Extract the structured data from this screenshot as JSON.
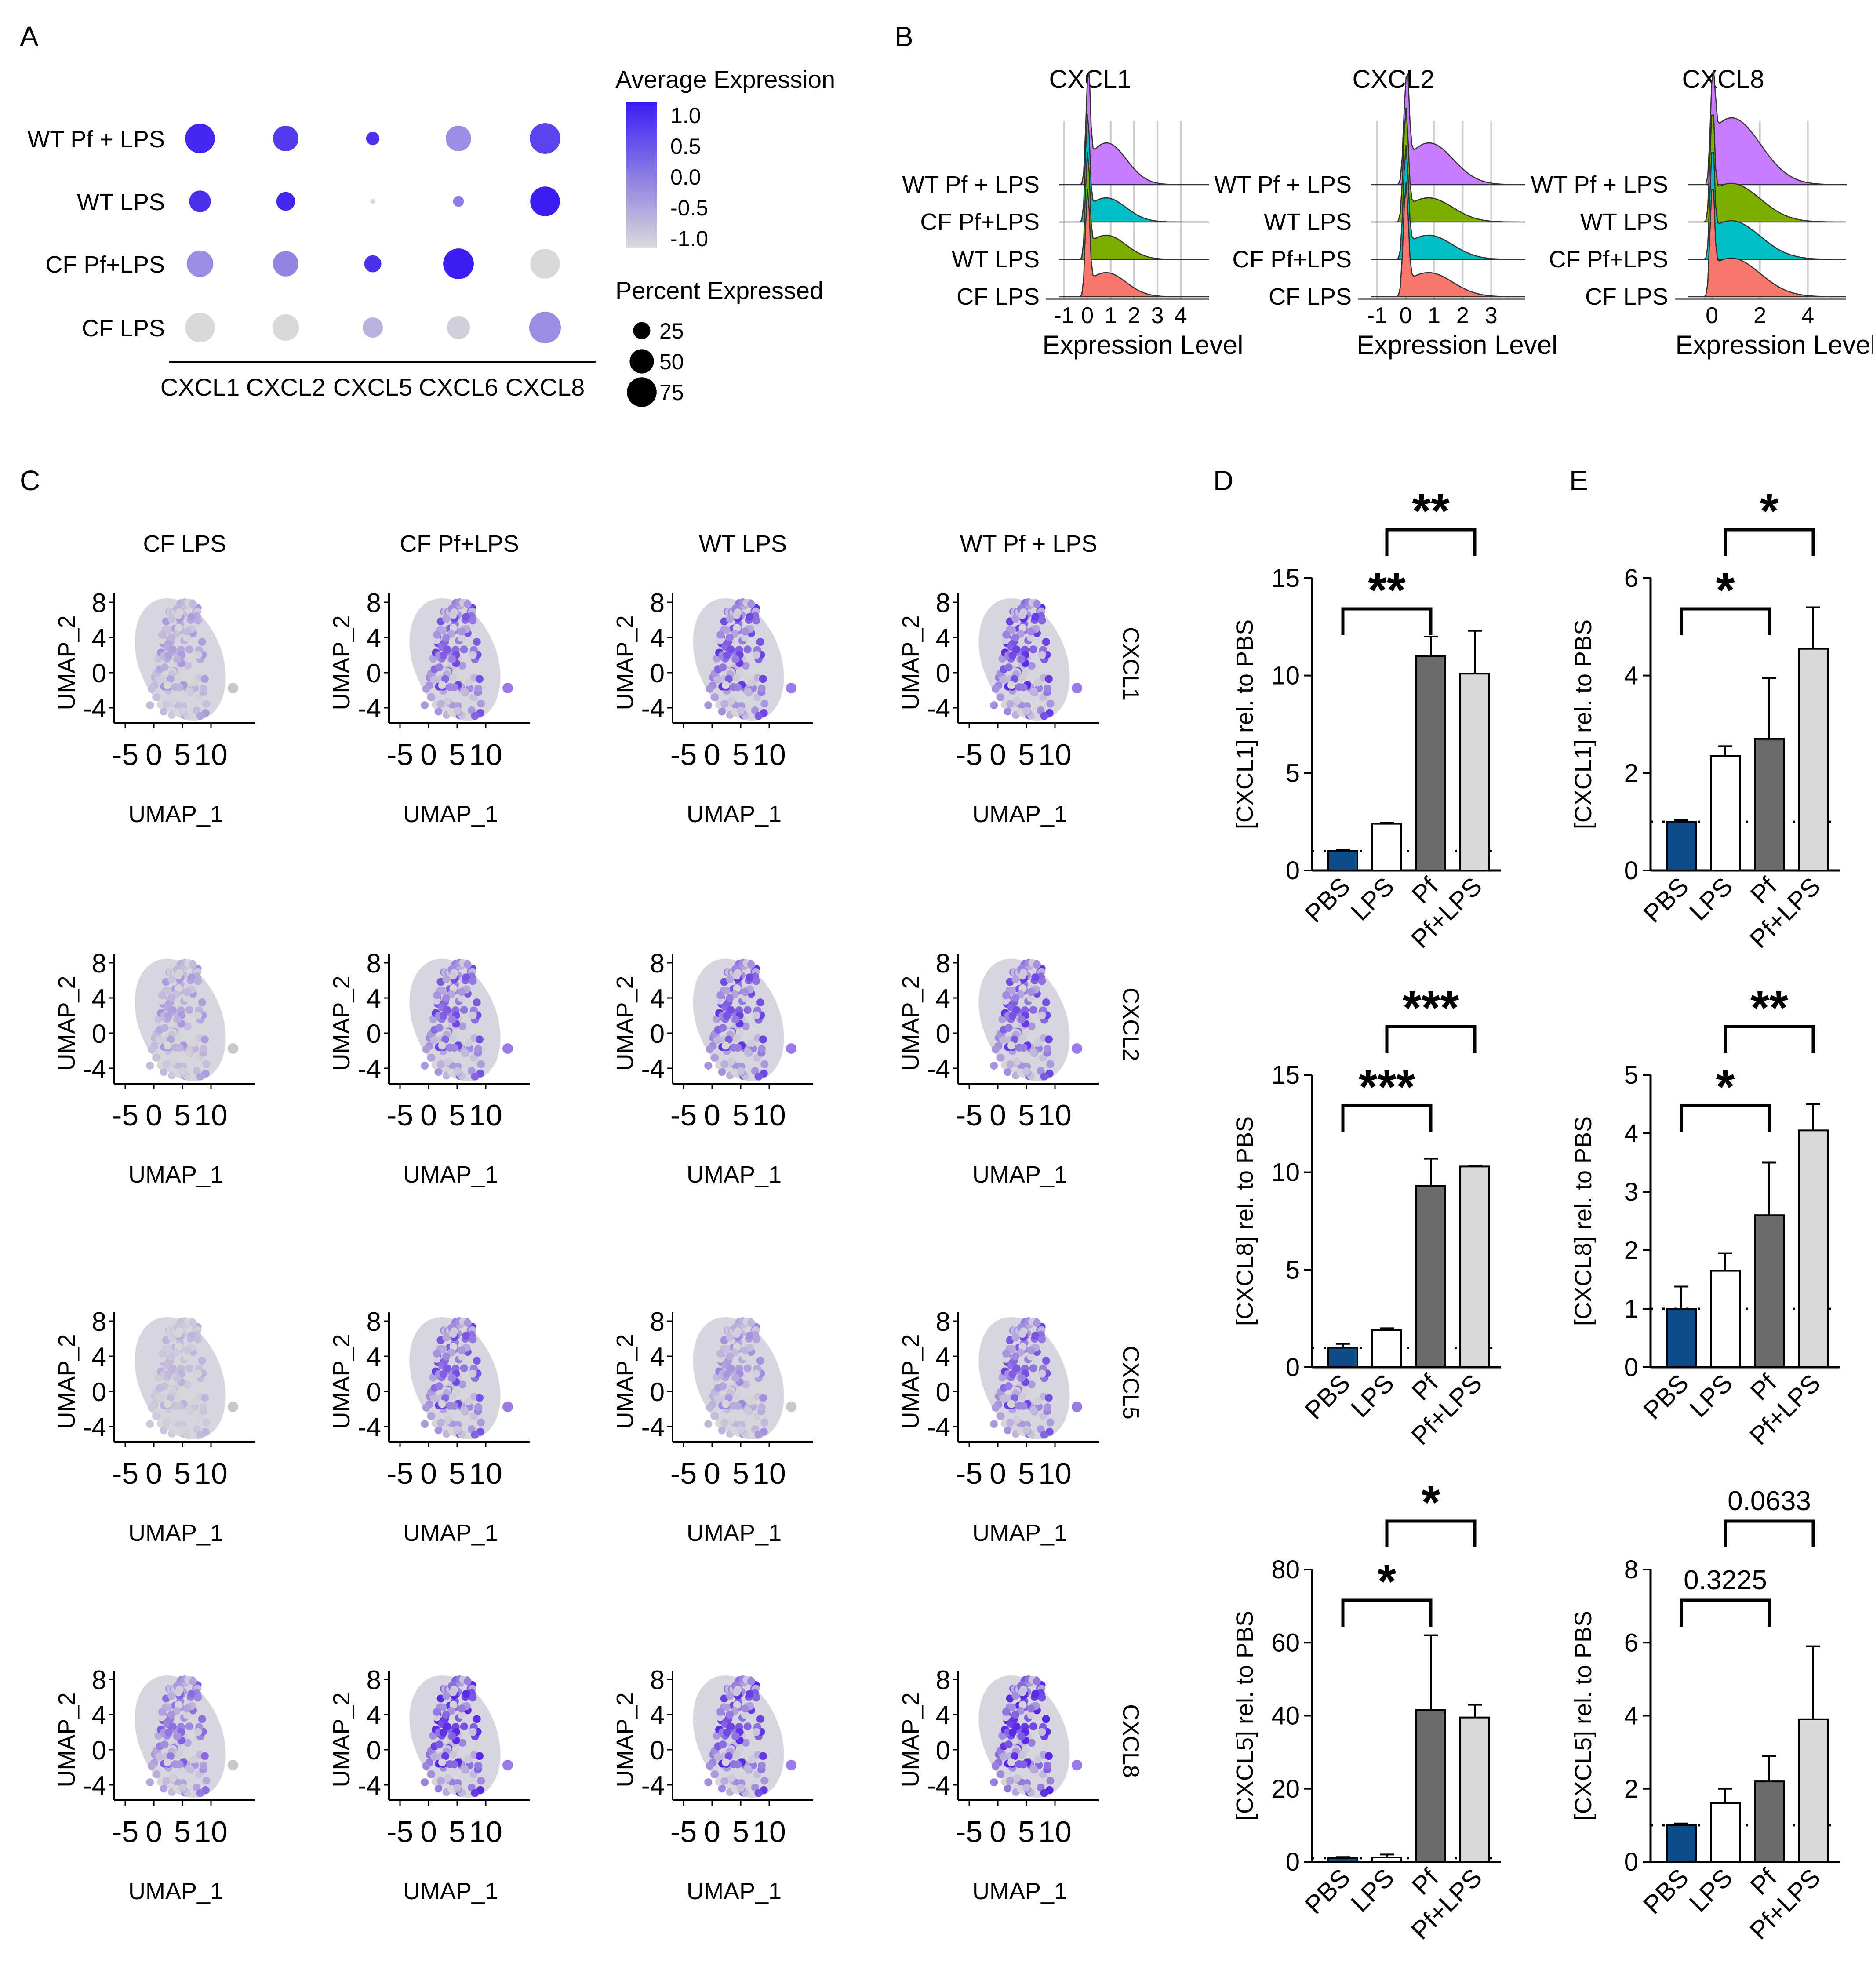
{
  "panels": {
    "A": "A",
    "B": "B",
    "C": "C",
    "D": "D",
    "E": "E"
  },
  "chart_data": [
    {
      "panel": "A",
      "type": "dotplot",
      "rows": [
        "WT Pf + LPS",
        "WT LPS",
        "CF Pf+LPS",
        "CF LPS"
      ],
      "columns": [
        "CXCL1",
        "CXCL2",
        "CXCL5",
        "CXCL6",
        "CXCL8"
      ],
      "avg_expression": [
        [
          0.9,
          0.7,
          0.8,
          -0.2,
          0.6
        ],
        [
          0.8,
          0.9,
          -1.0,
          0.0,
          1.0
        ],
        [
          -0.2,
          -0.1,
          0.8,
          1.0,
          -1.0
        ],
        [
          -1.0,
          -1.0,
          -0.6,
          -0.9,
          -0.2
        ]
      ],
      "pct_expressed": [
        [
          75,
          55,
          15,
          55,
          80
        ],
        [
          40,
          30,
          2,
          10,
          75
        ],
        [
          60,
          55,
          25,
          80,
          75
        ],
        [
          75,
          60,
          35,
          45,
          85
        ]
      ],
      "color_legend": {
        "title": "Average Expression",
        "ticks": [
          "1.0",
          "0.5",
          "0.0",
          "-0.5",
          "-1.0"
        ],
        "low": "#d9d9d9",
        "high": "#3b1ef0"
      },
      "size_legend": {
        "title": "Percent Expressed",
        "ticks": [
          "25",
          "50",
          "75"
        ]
      }
    },
    {
      "panel": "B",
      "type": "ridgeline",
      "xlabel": "Expression Level",
      "series_colors": {
        "WT Pf + LPS": "#c77cff",
        "WT LPS": "#7cae00",
        "CF Pf+LPS": "#00bfc4",
        "CF LPS": "#f8766d"
      },
      "plots": [
        {
          "title": "CXCL1",
          "ticks": [
            "-1",
            "0",
            "1",
            "2",
            "3",
            "4"
          ],
          "xlim": [
            -1.2,
            5.2
          ],
          "order": [
            "WT Pf + LPS",
            "CF Pf+LPS",
            "WT LPS",
            "CF LPS"
          ]
        },
        {
          "title": "CXCL2",
          "ticks": [
            "-1",
            "0",
            "1",
            "2",
            "3"
          ],
          "xlim": [
            -1.2,
            4.2
          ],
          "order": [
            "WT Pf + LPS",
            "WT LPS",
            "CF Pf+LPS",
            "CF LPS"
          ]
        },
        {
          "title": "CXCL8",
          "ticks": [
            "0",
            "2",
            "4"
          ],
          "xlim": [
            -1.0,
            5.6
          ],
          "order": [
            "WT Pf + LPS",
            "WT LPS",
            "CF Pf+LPS",
            "CF LPS"
          ]
        }
      ]
    },
    {
      "panel": "C",
      "type": "scatter",
      "columns": [
        "CF LPS",
        "CF Pf+LPS",
        "WT LPS",
        "WT Pf + LPS"
      ],
      "rows": [
        "CXCL1",
        "CXCL2",
        "CXCL5",
        "CXCL8"
      ],
      "xlabel": "UMAP_1",
      "ylabel": "UMAP_2",
      "xticks": [
        "-5",
        "0",
        "5",
        "10"
      ],
      "yticks": [
        "8",
        "4",
        "0",
        "-4"
      ],
      "intensity": [
        [
          0.25,
          0.55,
          0.6,
          0.65
        ],
        [
          0.25,
          0.55,
          0.6,
          0.6
        ],
        [
          0.15,
          0.55,
          0.3,
          0.55
        ],
        [
          0.45,
          0.75,
          0.65,
          0.8
        ]
      ]
    },
    {
      "panel": "D",
      "type": "bar",
      "categories": [
        "PBS",
        "LPS",
        "Pf",
        "Pf+LPS"
      ],
      "bar_colors": [
        "#0f4c8a",
        "#ffffff",
        "#6b6b6b",
        "#d9d9d9"
      ],
      "plots": [
        {
          "ylabel": "[CXCL1] rel. to PBS",
          "ylim": [
            0,
            15
          ],
          "yticks": [
            "0",
            "5",
            "10",
            "15"
          ],
          "values": [
            1.0,
            2.4,
            11.0,
            10.1
          ],
          "errors": [
            0.05,
            0.05,
            1.0,
            2.2
          ],
          "sig": [
            {
              "from": 0,
              "to": 2,
              "label": "**"
            },
            {
              "from": 1,
              "to": 3,
              "label": "**"
            }
          ]
        },
        {
          "ylabel": "[CXCL8] rel. to PBS",
          "ylim": [
            0,
            15
          ],
          "yticks": [
            "0",
            "5",
            "10",
            "15"
          ],
          "values": [
            1.0,
            1.9,
            9.3,
            10.3
          ],
          "errors": [
            0.2,
            0.1,
            1.4,
            0.05
          ],
          "sig": [
            {
              "from": 0,
              "to": 2,
              "label": "***"
            },
            {
              "from": 1,
              "to": 3,
              "label": "***"
            }
          ]
        },
        {
          "ylabel": "[CXCL5] rel. to PBS",
          "ylim": [
            0,
            80
          ],
          "yticks": [
            "0",
            "20",
            "40",
            "60",
            "80"
          ],
          "values": [
            1.0,
            1.2,
            41.5,
            39.5
          ],
          "errors": [
            0.3,
            0.8,
            20.5,
            3.5
          ],
          "sig": [
            {
              "from": 0,
              "to": 2,
              "label": "*"
            },
            {
              "from": 1,
              "to": 3,
              "label": "*"
            }
          ]
        }
      ]
    },
    {
      "panel": "E",
      "type": "bar",
      "categories": [
        "PBS",
        "LPS",
        "Pf",
        "Pf+LPS"
      ],
      "bar_colors": [
        "#0f4c8a",
        "#ffffff",
        "#6b6b6b",
        "#d9d9d9"
      ],
      "plots": [
        {
          "ylabel": "[CXCL1] rel. to PBS",
          "ylim": [
            0,
            6
          ],
          "yticks": [
            "0",
            "2",
            "4",
            "6"
          ],
          "values": [
            1.0,
            2.35,
            2.7,
            4.55
          ],
          "errors": [
            0.03,
            0.2,
            1.25,
            0.85
          ],
          "sig": [
            {
              "from": 0,
              "to": 2,
              "label": "*"
            },
            {
              "from": 1,
              "to": 3,
              "label": "*"
            }
          ]
        },
        {
          "ylabel": "[CXCL8] rel. to PBS",
          "ylim": [
            0,
            5
          ],
          "yticks": [
            "0",
            "1",
            "2",
            "3",
            "4",
            "5"
          ],
          "values": [
            1.0,
            1.65,
            2.6,
            4.05
          ],
          "errors": [
            0.38,
            0.3,
            0.9,
            0.45
          ],
          "sig": [
            {
              "from": 0,
              "to": 2,
              "label": "*"
            },
            {
              "from": 1,
              "to": 3,
              "label": "**"
            }
          ]
        },
        {
          "ylabel": "[CXCL5] rel. to PBS",
          "ylim": [
            0,
            8
          ],
          "yticks": [
            "0",
            "2",
            "4",
            "6",
            "8"
          ],
          "values": [
            1.0,
            1.6,
            2.2,
            3.9
          ],
          "errors": [
            0.05,
            0.4,
            0.7,
            2.0
          ],
          "sig": [
            {
              "from": 0,
              "to": 2,
              "label": "0.3225"
            },
            {
              "from": 1,
              "to": 3,
              "label": "0.0633"
            }
          ]
        }
      ]
    }
  ]
}
